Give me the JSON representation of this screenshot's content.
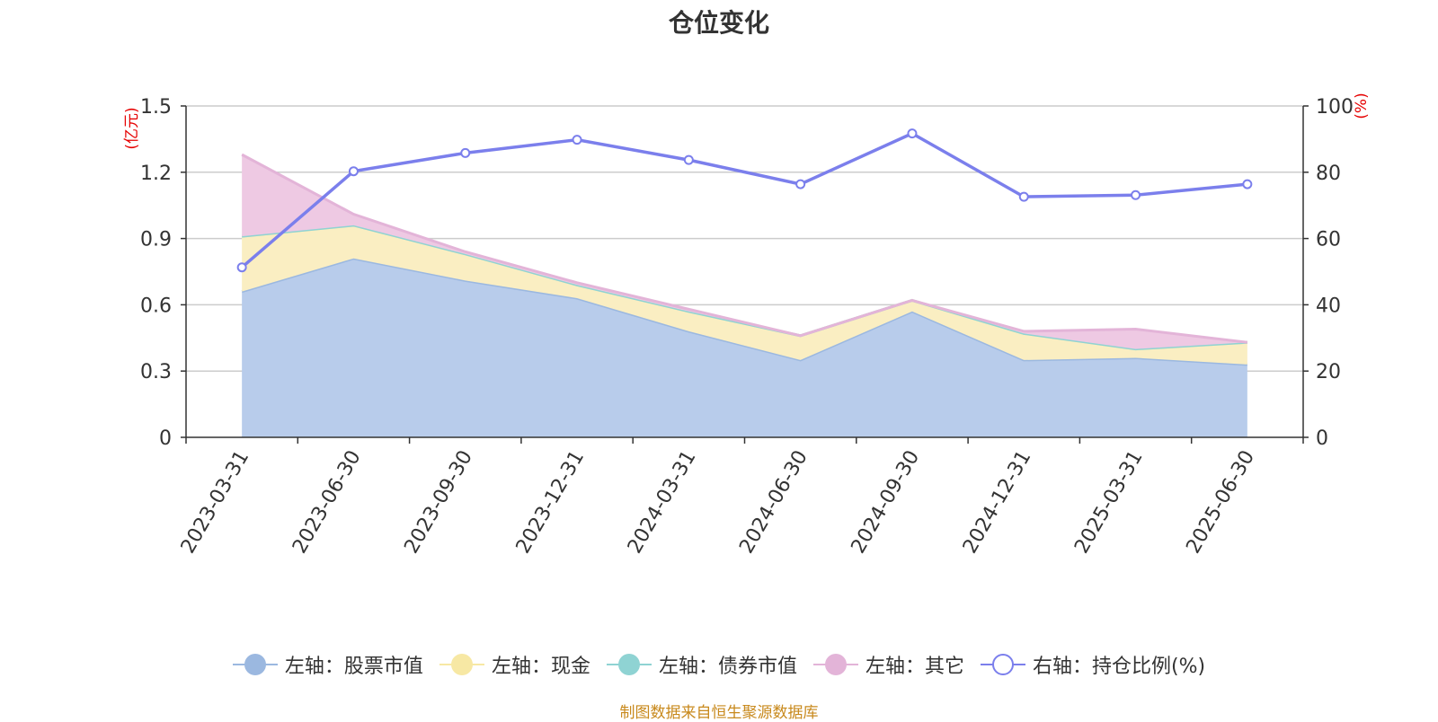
{
  "chart_data": {
    "type": "area",
    "title": "仓位变化",
    "left_axis_unit": "(亿元)",
    "right_axis_unit": "(%)",
    "categories": [
      "2023-03-31",
      "2023-06-30",
      "2023-09-30",
      "2023-12-31",
      "2024-03-31",
      "2024-06-30",
      "2024-09-30",
      "2024-12-31",
      "2025-03-31",
      "2025-06-30"
    ],
    "left_ylim": [
      0,
      1.5
    ],
    "left_ticks": [
      "0",
      "0.3",
      "0.6",
      "0.9",
      "1.2",
      "1.5"
    ],
    "right_ylim": [
      0,
      100
    ],
    "right_ticks": [
      "0",
      "20",
      "40",
      "60",
      "80",
      "100"
    ],
    "grid": true,
    "stacked": true,
    "series": [
      {
        "name": "左轴：股票市值",
        "axis": "left",
        "type": "area",
        "color": "#9bb8e0",
        "fill": "#b8cceb",
        "values": [
          0.66,
          0.81,
          0.71,
          0.63,
          0.48,
          0.35,
          0.57,
          0.35,
          0.36,
          0.33
        ]
      },
      {
        "name": "左轴：现金",
        "axis": "left",
        "type": "area",
        "color": "#f7e8a4",
        "fill": "#faeec2",
        "values": [
          0.25,
          0.15,
          0.12,
          0.06,
          0.09,
          0.11,
          0.05,
          0.12,
          0.04,
          0.1
        ]
      },
      {
        "name": "左轴：债券市值",
        "axis": "left",
        "type": "area",
        "color": "#8fd3d3",
        "fill": "#a8dfe0",
        "values": [
          0,
          0,
          0,
          0,
          0,
          0,
          0,
          0,
          0,
          0
        ]
      },
      {
        "name": "左轴：其它",
        "axis": "left",
        "type": "area",
        "color": "#e3b4d8",
        "fill": "#eec9e3",
        "values": [
          0.37,
          0.05,
          0.01,
          0.01,
          0.01,
          0.0,
          0.0,
          0.01,
          0.09,
          0.0
        ]
      },
      {
        "name": "右轴：持仓比例(%)",
        "axis": "right",
        "type": "line",
        "color": "#7b7fec",
        "values": [
          51.3,
          80.3,
          85.8,
          89.8,
          83.7,
          76.4,
          91.7,
          72.6,
          73.1,
          76.4
        ]
      }
    ],
    "legend_position": "bottom",
    "source": "制图数据来自恒生聚源数据库"
  }
}
